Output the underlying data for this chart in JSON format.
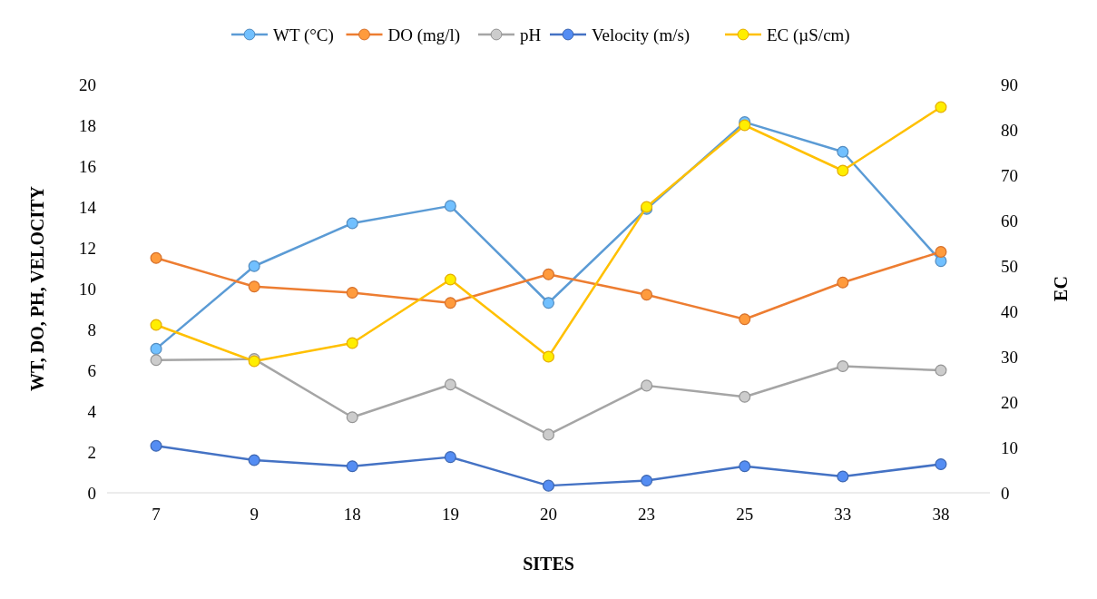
{
  "chart_data": {
    "type": "line",
    "xlabel": "SITES",
    "ylabel": "WT, DO, PH, VELOCITY",
    "y2label": "EC",
    "categories": [
      "7",
      "9",
      "18",
      "19",
      "20",
      "23",
      "25",
      "33",
      "38"
    ],
    "series": [
      {
        "name": "WT (°C)",
        "color": "#5b9bd5",
        "values": [
          7.05,
          11.1,
          13.2,
          14.05,
          9.3,
          13.9,
          18.15,
          16.7,
          11.35
        ]
      },
      {
        "name": "DO (mg/l)",
        "color": "#ed7d31",
        "values": [
          11.5,
          10.1,
          9.8,
          9.3,
          10.7,
          9.7,
          8.5,
          10.3,
          11.8
        ]
      },
      {
        "name": "pH",
        "color": "#a5a5a5",
        "values": [
          6.5,
          6.55,
          3.7,
          5.3,
          2.85,
          5.25,
          4.7,
          6.2,
          6.0
        ]
      },
      {
        "name": "Velocity (m/s)",
        "color": "#4472c4",
        "values": [
          2.3,
          1.6,
          1.3,
          1.75,
          0.35,
          0.6,
          1.3,
          0.8,
          1.4
        ]
      },
      {
        "name": "EC (µS/cm)",
        "color": "#ffc000",
        "axis": "y2",
        "values": [
          37,
          29,
          33,
          47,
          30,
          63,
          81,
          71,
          85
        ]
      }
    ],
    "ylim": [
      0,
      20
    ],
    "yticks": [
      0,
      2,
      4,
      6,
      8,
      10,
      12,
      14,
      16,
      18,
      20
    ],
    "y2lim": [
      0,
      90
    ],
    "y2ticks": [
      0,
      10,
      20,
      30,
      40,
      50,
      60,
      70,
      80,
      90
    ],
    "grid": false,
    "legend": "top",
    "marker": "circle",
    "line_style": "solid"
  }
}
